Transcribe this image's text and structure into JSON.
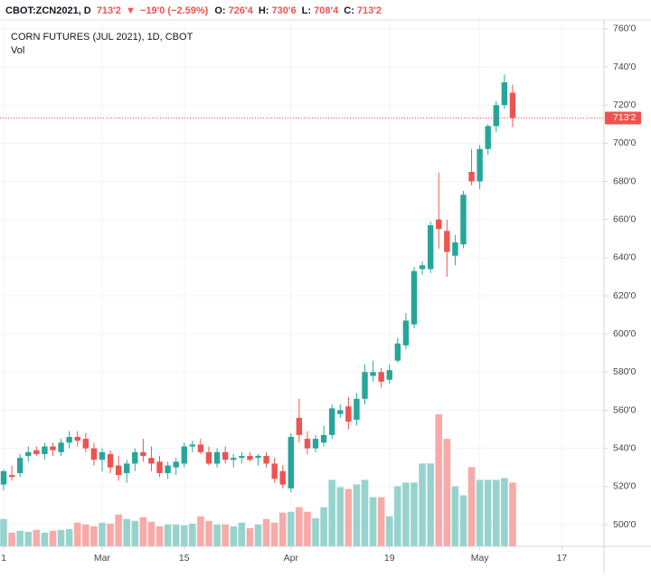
{
  "header": {
    "symbol": "CBOT:ZCN2021, D",
    "price": "713'2",
    "arrow": "▼",
    "change": "−19'0 (−2.59%)",
    "o_label": "O:",
    "o": "726'4",
    "h_label": "H:",
    "h": "730'6",
    "l_label": "L:",
    "l": "708'4",
    "c_label": "C:",
    "c": "713'2"
  },
  "chart_data": {
    "type": "candlestick",
    "title": "CORN FUTURES (JUL 2021), 1D, CBOT",
    "volume_label": "Vol",
    "up_color": "#26a69a",
    "down_color": "#ef5350",
    "up_volume_color": "#97d3cd",
    "down_volume_color": "#f7aaa8",
    "open": [
      521,
      526,
      527,
      536,
      539,
      537,
      541,
      538,
      543,
      546,
      545,
      540,
      534,
      537,
      531,
      527,
      532,
      538,
      535,
      533,
      527,
      530,
      532,
      541,
      542,
      538,
      532,
      538,
      534,
      535,
      536,
      535,
      536,
      532,
      528,
      519,
      556,
      545,
      540,
      543,
      547,
      558,
      562,
      555,
      566,
      578,
      580,
      576,
      586,
      594,
      605,
      634,
      634,
      660,
      654,
      641,
      647,
      685,
      680,
      697,
      709,
      720,
      726.5
    ],
    "high": [
      529,
      531,
      537,
      541,
      541,
      543,
      543,
      545,
      549,
      549,
      548,
      543,
      540,
      539,
      536,
      534,
      540,
      545,
      541,
      536,
      533,
      535,
      543,
      544,
      545,
      541,
      540,
      541,
      537,
      538,
      538,
      537,
      538,
      535,
      531,
      548,
      566,
      549,
      547,
      552,
      563,
      563,
      567,
      569,
      584,
      586,
      582,
      584,
      598,
      611,
      635,
      638,
      659,
      684.6,
      660,
      652,
      675,
      697,
      699,
      710,
      722,
      736,
      730.75
    ],
    "low": [
      518,
      523,
      525,
      533,
      536,
      534,
      536,
      536,
      540,
      541,
      538,
      531,
      528,
      527,
      523,
      522,
      528,
      533,
      528,
      525,
      524,
      526,
      530,
      538,
      537,
      531,
      530,
      532,
      530,
      532,
      533,
      531,
      530,
      522,
      519,
      517,
      543,
      537,
      538,
      541,
      545,
      556,
      550,
      552,
      563,
      575,
      572,
      574,
      585,
      592,
      603,
      631,
      632,
      644.7,
      630,
      636,
      645,
      678,
      676,
      694,
      706,
      718,
      708.5
    ],
    "close": [
      528,
      525,
      535,
      538,
      537,
      541,
      539,
      543,
      546,
      544,
      540,
      534,
      538,
      530,
      526,
      532,
      538,
      536,
      532,
      527,
      531,
      533,
      541,
      542,
      538,
      532,
      538,
      534,
      535,
      536,
      534,
      536,
      532,
      524,
      521,
      546,
      547,
      540,
      545,
      547,
      561,
      560,
      554,
      566,
      580,
      580,
      575,
      581,
      595,
      607,
      633,
      636,
      657,
      655,
      643,
      648,
      673,
      680,
      697,
      709,
      720,
      732,
      713.25
    ],
    "volume": [
      30000,
      15000,
      17000,
      16000,
      18000,
      15000,
      17000,
      18000,
      19000,
      26000,
      24000,
      22000,
      26000,
      25000,
      35000,
      30000,
      28000,
      32000,
      27000,
      22000,
      24000,
      24000,
      23000,
      25000,
      33000,
      28000,
      24000,
      24000,
      22000,
      26000,
      20000,
      24000,
      30000,
      26000,
      37000,
      38000,
      43000,
      38000,
      31000,
      43000,
      73000,
      65000,
      63000,
      68000,
      73000,
      54000,
      54000,
      33000,
      66000,
      70000,
      70000,
      91000,
      91000,
      145000,
      118000,
      66000,
      56000,
      87000,
      73000,
      73000,
      73000,
      75000,
      70000
    ],
    "ylim": [
      488.6,
      764.7
    ],
    "yticks": [
      {
        "value": 500,
        "label": "500'0"
      },
      {
        "value": 520,
        "label": "520'0"
      },
      {
        "value": 540,
        "label": "540'0"
      },
      {
        "value": 560,
        "label": "560'0"
      },
      {
        "value": 580,
        "label": "580'0"
      },
      {
        "value": 600,
        "label": "600'0"
      },
      {
        "value": 620,
        "label": "620'0"
      },
      {
        "value": 640,
        "label": "640'0"
      },
      {
        "value": 660,
        "label": "660'0"
      },
      {
        "value": 680,
        "label": "680'0"
      },
      {
        "value": 700,
        "label": "700'0"
      },
      {
        "value": 720,
        "label": "720'0"
      },
      {
        "value": 740,
        "label": "740'0"
      },
      {
        "value": 760,
        "label": "760'0"
      }
    ],
    "xticks": [
      {
        "value": 0,
        "label": "1"
      },
      {
        "value": 12,
        "label": "Mar"
      },
      {
        "value": 22,
        "label": "15"
      },
      {
        "value": 35,
        "label": "Apr"
      },
      {
        "value": 47,
        "label": "19"
      },
      {
        "value": 58,
        "label": "May"
      },
      {
        "value": 68,
        "label": "17"
      }
    ],
    "last_price": 713.25,
    "last_price_label": "713'2",
    "grid": true
  }
}
